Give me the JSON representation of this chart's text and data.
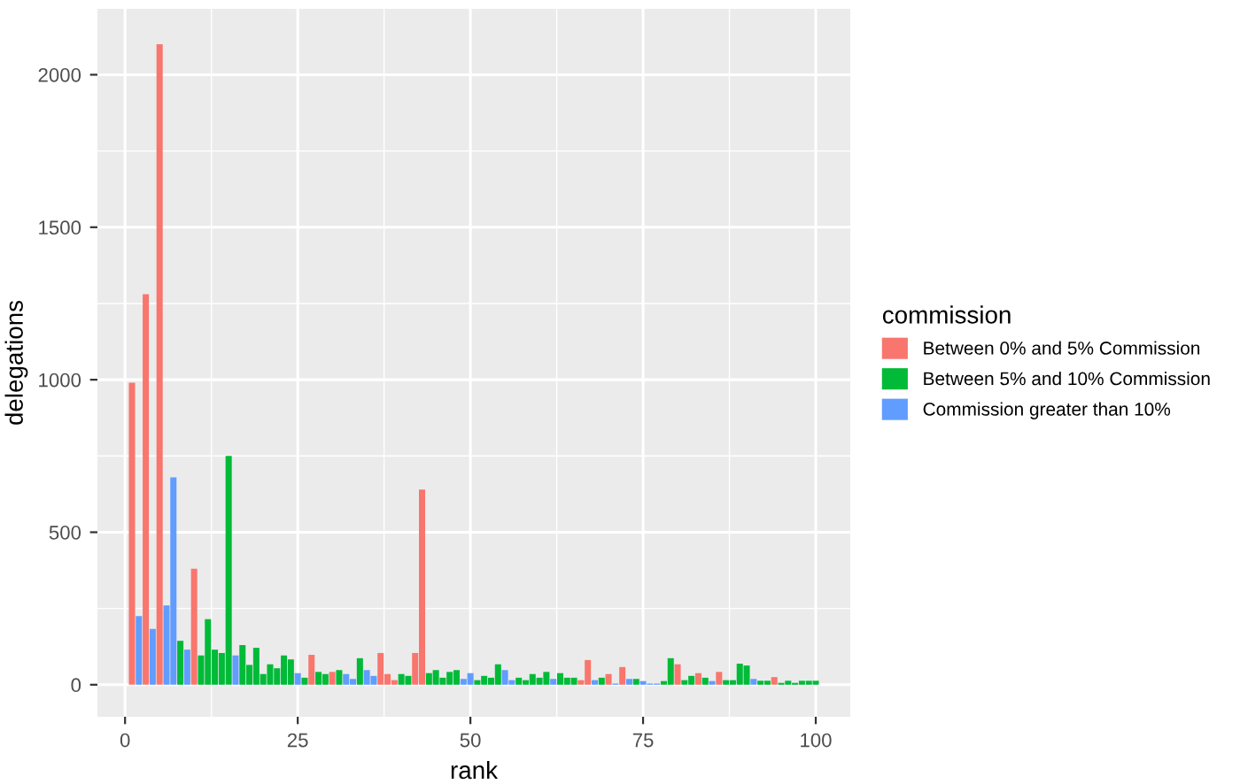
{
  "chart_data": {
    "type": "bar",
    "xlabel": "rank",
    "ylabel": "delegations",
    "legend_title": "commission",
    "series": [
      {
        "name": "Between 0% and 5% Commission",
        "color": "#f8766d",
        "x": [
          1,
          3,
          5,
          10,
          27,
          30,
          37,
          38,
          39,
          42,
          43,
          66,
          67,
          70,
          72,
          80,
          83,
          86,
          94
        ],
        "values": [
          990,
          1280,
          2100,
          380,
          98,
          42,
          104,
          35,
          15,
          104,
          640,
          15,
          81,
          35,
          58,
          67,
          38,
          42,
          25
        ]
      },
      {
        "name": "Between 5% and 10% Commission",
        "color": "#00ba38",
        "x": [
          8,
          11,
          12,
          13,
          14,
          15,
          17,
          18,
          19,
          20,
          21,
          22,
          23,
          24,
          26,
          28,
          29,
          31,
          34,
          40,
          41,
          44,
          45,
          46,
          47,
          48,
          51,
          52,
          53,
          54,
          57,
          58,
          59,
          60,
          61,
          63,
          64,
          65,
          69,
          74,
          78,
          79,
          81,
          82,
          84,
          87,
          88,
          89,
          90,
          92,
          93,
          95,
          96,
          97,
          98,
          99,
          100
        ],
        "values": [
          144,
          96,
          215,
          115,
          104,
          750,
          130,
          65,
          121,
          35,
          67,
          54,
          96,
          83,
          23,
          42,
          35,
          48,
          87,
          35,
          29,
          38,
          48,
          23,
          42,
          48,
          15,
          29,
          23,
          67,
          23,
          15,
          35,
          23,
          42,
          38,
          23,
          23,
          23,
          19,
          12,
          87,
          15,
          29,
          23,
          15,
          15,
          69,
          63,
          13,
          13,
          6,
          13,
          6,
          13,
          13,
          13
        ]
      },
      {
        "name": "Commission greater than 10%",
        "color": "#619cff",
        "x": [
          2,
          4,
          6,
          7,
          9,
          16,
          25,
          32,
          33,
          35,
          36,
          49,
          50,
          55,
          56,
          62,
          68,
          71,
          73,
          75,
          76,
          77,
          85,
          91
        ],
        "values": [
          225,
          183,
          260,
          680,
          115,
          96,
          38,
          35,
          19,
          48,
          29,
          19,
          38,
          48,
          15,
          19,
          15,
          4,
          19,
          12,
          4,
          4,
          12,
          19
        ]
      }
    ],
    "xlim": [
      -4,
      105
    ],
    "xticks": [
      0,
      25,
      50,
      75,
      100
    ],
    "ylim": [
      -105,
      2216
    ],
    "yticks": [
      0,
      500,
      1000,
      1500,
      2000
    ],
    "grid": true,
    "legend": "right"
  }
}
